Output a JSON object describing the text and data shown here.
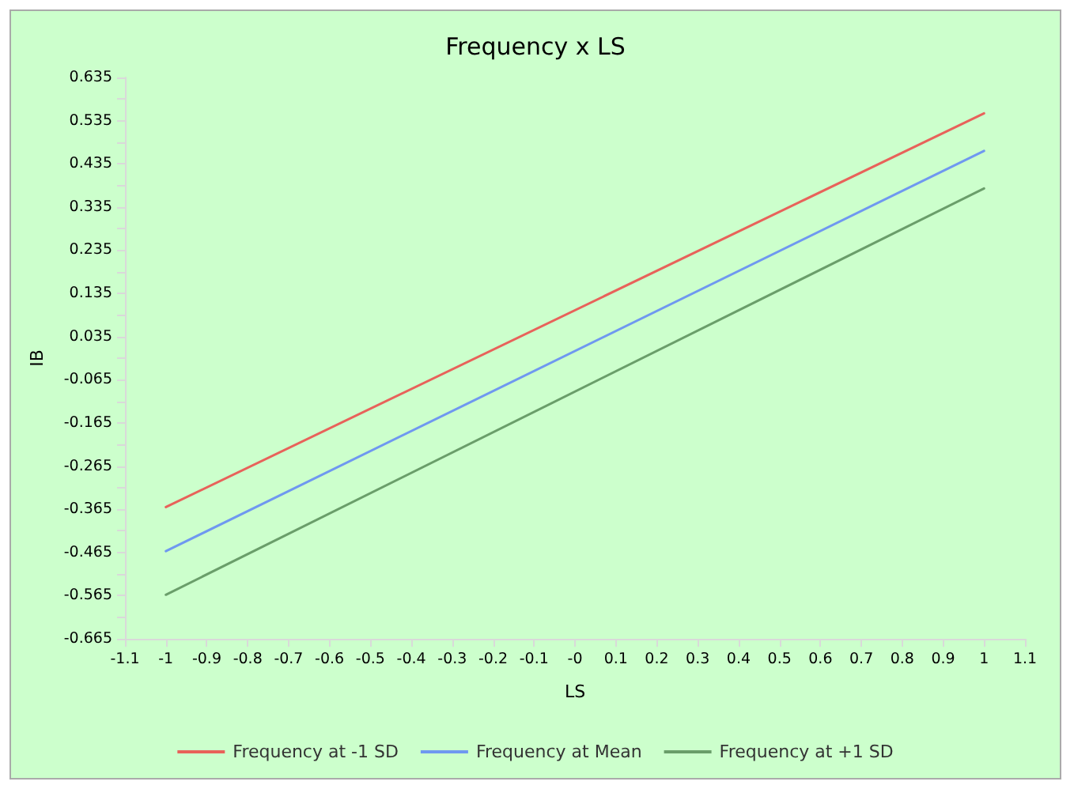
{
  "chart_data": {
    "type": "line",
    "title": "Frequency x LS",
    "xlabel": "LS",
    "ylabel": "IB",
    "x": [
      -1,
      1
    ],
    "series": [
      {
        "name": "Frequency at -1 SD",
        "color": "#e8625a",
        "values": [
          -0.36,
          0.552
        ]
      },
      {
        "name": "Frequency at Mean",
        "color": "#6f98f0",
        "values": [
          -0.462,
          0.465
        ]
      },
      {
        "name": "Frequency at +1 SD",
        "color": "#6a9e6a",
        "values": [
          -0.563,
          0.378
        ]
      }
    ],
    "xlim": [
      -1.1,
      1.1
    ],
    "xticks": [
      -1.1,
      -1,
      -0.9,
      -0.8,
      -0.7,
      -0.6,
      -0.5,
      -0.4,
      -0.3,
      -0.2,
      -0.1,
      {
        "value": 0,
        "label": "-0"
      },
      0.1,
      0.2,
      0.3,
      0.4,
      0.5,
      0.6,
      0.7,
      0.8,
      0.9,
      1,
      1.1
    ],
    "ylim": [
      -0.665,
      0.635
    ],
    "yticks": [
      -0.665,
      {
        "value": -0.615,
        "label": null
      },
      -0.565,
      {
        "value": -0.515,
        "label": null
      },
      -0.465,
      {
        "value": -0.415,
        "label": null
      },
      -0.365,
      {
        "value": -0.315,
        "label": null
      },
      -0.265,
      {
        "value": -0.215,
        "label": null
      },
      -0.165,
      {
        "value": -0.115,
        "label": null
      },
      -0.065,
      {
        "value": -0.015,
        "label": null
      },
      0.035,
      {
        "value": 0.085,
        "label": null
      },
      0.135,
      {
        "value": 0.185,
        "label": null
      },
      0.235,
      {
        "value": 0.285,
        "label": null
      },
      0.335,
      {
        "value": 0.385,
        "label": null
      },
      0.435,
      {
        "value": 0.485,
        "label": null
      },
      0.535,
      {
        "value": 0.585,
        "label": null
      },
      0.635
    ],
    "grid": false,
    "legend": "bottom",
    "marker": "none",
    "line_style": "solid"
  }
}
